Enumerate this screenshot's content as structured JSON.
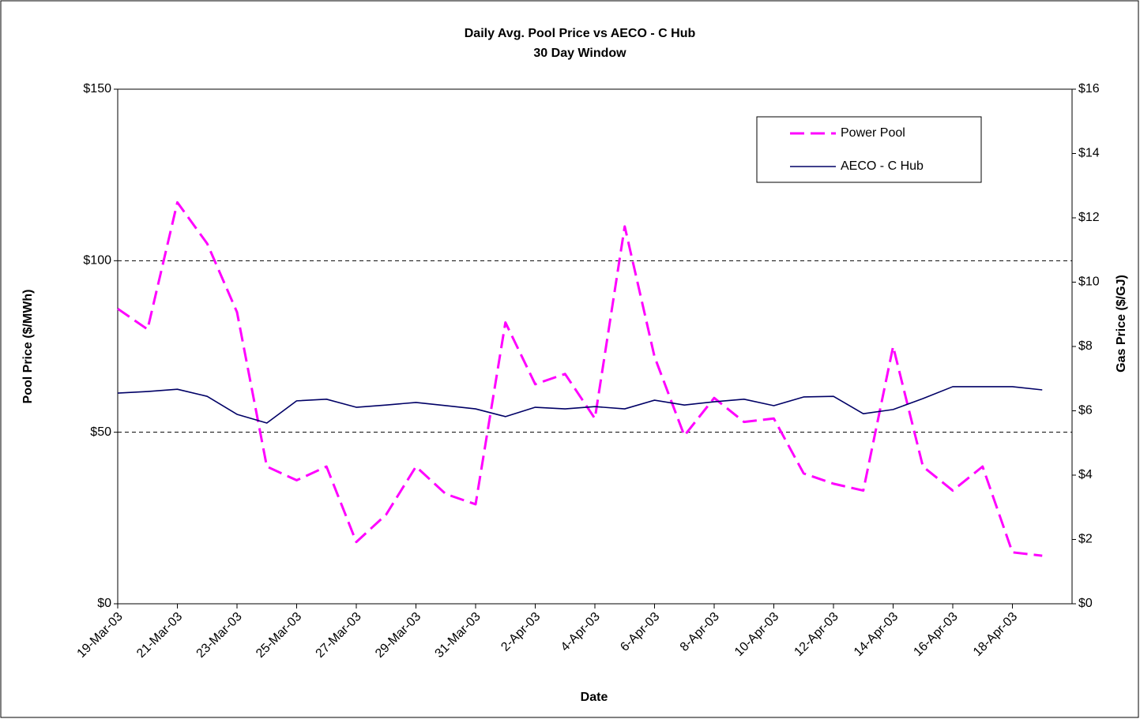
{
  "chart_data": {
    "type": "line",
    "title": "Daily Avg. Pool Price vs AECO - C Hub",
    "subtitle": "30 Day Window",
    "x_label": "Date",
    "y_label": "Pool Price ($/MWh)",
    "y2_label": "Gas Price ($/GJ)",
    "x": [
      "19-Mar-03",
      "20-Mar-03",
      "21-Mar-03",
      "22-Mar-03",
      "23-Mar-03",
      "24-Mar-03",
      "25-Mar-03",
      "26-Mar-03",
      "27-Mar-03",
      "28-Mar-03",
      "29-Mar-03",
      "30-Mar-03",
      "31-Mar-03",
      "1-Apr-03",
      "2-Apr-03",
      "3-Apr-03",
      "4-Apr-03",
      "5-Apr-03",
      "6-Apr-03",
      "7-Apr-03",
      "8-Apr-03",
      "9-Apr-03",
      "10-Apr-03",
      "11-Apr-03",
      "12-Apr-03",
      "13-Apr-03",
      "14-Apr-03",
      "15-Apr-03",
      "16-Apr-03",
      "17-Apr-03",
      "18-Apr-03",
      "19-Apr-03"
    ],
    "xlim": [
      "19-Mar-03",
      "20-Apr-03"
    ],
    "xticks": [
      "19-Mar-03",
      "21-Mar-03",
      "23-Mar-03",
      "25-Mar-03",
      "27-Mar-03",
      "29-Mar-03",
      "31-Mar-03",
      "2-Apr-03",
      "4-Apr-03",
      "6-Apr-03",
      "8-Apr-03",
      "10-Apr-03",
      "12-Apr-03",
      "14-Apr-03",
      "16-Apr-03",
      "18-Apr-03"
    ],
    "series": [
      {
        "name": "Power Pool",
        "color": "#ff00ff",
        "dash": true,
        "values": [
          86,
          80,
          117,
          105,
          85,
          40,
          36,
          40,
          18,
          26,
          40,
          32,
          29,
          82,
          64,
          67,
          54,
          110,
          72,
          49,
          60,
          53,
          54,
          38,
          35,
          33,
          75,
          40,
          33,
          40,
          15,
          14
        ]
      },
      {
        "name": "AECO - C Hub",
        "color": "#000066",
        "axis": "y2",
        "values": [
          6.55,
          6.6,
          6.67,
          6.45,
          5.89,
          5.62,
          6.31,
          6.36,
          6.11,
          6.18,
          6.26,
          6.16,
          6.06,
          5.82,
          6.11,
          6.06,
          6.13,
          6.06,
          6.33,
          6.18,
          6.28,
          6.36,
          6.16,
          6.43,
          6.45,
          5.91,
          6.04,
          6.38,
          6.75,
          6.75,
          6.75,
          6.65
        ]
      }
    ],
    "ylim": [
      0,
      150
    ],
    "yticks": [
      {
        "value": 0,
        "label": "$0"
      },
      {
        "value": 50,
        "label": "$50"
      },
      {
        "value": 100,
        "label": "$100"
      },
      {
        "value": 150,
        "label": "$150"
      }
    ],
    "y2lim": [
      0,
      16
    ],
    "y2ticks": [
      {
        "value": 0,
        "label": "$0"
      },
      {
        "value": 2,
        "label": "$2"
      },
      {
        "value": 4,
        "label": "$4"
      },
      {
        "value": 6,
        "label": "$6"
      },
      {
        "value": 8,
        "label": "$8"
      },
      {
        "value": 10,
        "label": "$10"
      },
      {
        "value": 12,
        "label": "$12"
      },
      {
        "value": 14,
        "label": "$14"
      },
      {
        "value": 16,
        "label": "$16"
      }
    ],
    "grid": true,
    "legend": "top-right"
  }
}
